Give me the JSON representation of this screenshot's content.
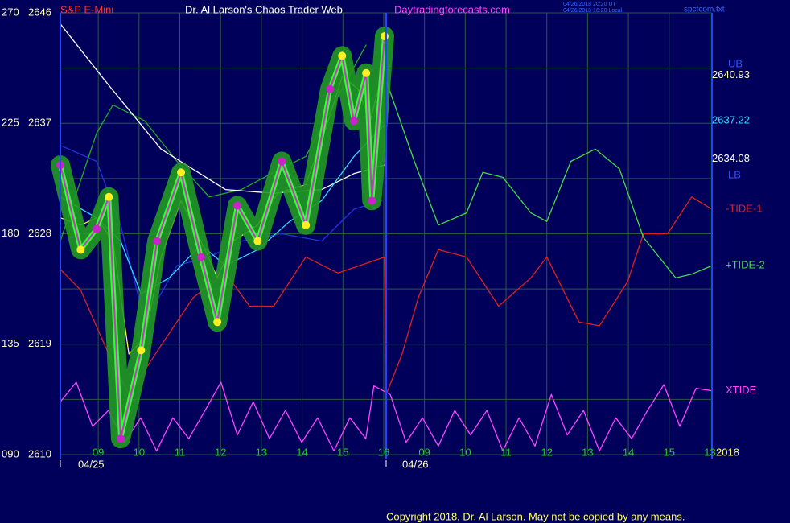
{
  "chart_data": {
    "type": "line",
    "header": {
      "instrument": "S&P E-Mini",
      "title": "Dr. Al Larson's Chaos Trader Web",
      "site": "Daytradingforecasts.com",
      "stamp_ut": "04/26/2018 20:20 UT",
      "stamp_local": "04/26/2018 16:20 Local",
      "file": "spcfcom.txt"
    },
    "dates": [
      "04/25",
      "04/26"
    ],
    "year": "2018",
    "bound_labels": {
      "upper": "UB",
      "lower": "LB"
    },
    "levels": [
      {
        "value": 2640.93,
        "color": "#ffffc0"
      },
      {
        "value": 2637.22,
        "color": "#33ddff"
      },
      {
        "value": 2634.08,
        "color": "#ffffff"
      }
    ],
    "copyright": "Copyright 2018, Dr. Al Larson. May not be copied by any means.",
    "xlim": [
      8.07,
      24.05
    ],
    "xticks": [
      {
        "value": 9,
        "label": "09"
      },
      10,
      11,
      12,
      13,
      14,
      15,
      16,
      {
        "value": 17,
        "label": "09"
      },
      {
        "value": 18,
        "label": "10"
      },
      {
        "value": 19,
        "label": "11"
      },
      {
        "value": 20,
        "label": "12"
      },
      {
        "value": 21,
        "label": "13"
      },
      {
        "value": 22,
        "label": "14"
      },
      {
        "value": 23,
        "label": "15"
      },
      {
        "value": 24,
        "label": "13"
      }
    ],
    "ylim": [
      2610,
      2646
    ],
    "yticks": [
      2610,
      2619,
      2628,
      2637,
      2646
    ],
    "yminor": [
      2614.5,
      2623.5,
      2632.5,
      2641.5
    ],
    "y2lim": [
      90,
      270
    ],
    "y2ticks": [
      {
        "value": 90,
        "label": "090"
      },
      135,
      180,
      225,
      270
    ],
    "grid": true,
    "grid_color": "#285a40",
    "series": [
      {
        "name": "XTIDE",
        "color": "#ff44ff",
        "x": [
          8.07,
          8.46,
          8.86,
          9.25,
          9.65,
          10.04,
          10.43,
          10.83,
          11.22,
          11.62,
          12.01,
          12.41,
          12.8,
          13.2,
          13.59,
          13.99,
          14.38,
          14.78,
          15.17,
          15.56,
          15.76,
          16.16,
          16.55,
          16.95,
          17.34,
          17.74,
          18.13,
          18.53,
          18.92,
          19.32,
          19.71,
          20.11,
          20.5,
          20.9,
          21.29,
          21.69,
          22.08,
          22.47,
          22.87,
          23.26,
          23.66,
          24.05
        ],
        "values": [
          2614.3,
          2615.9,
          2612.3,
          2613.6,
          2611.0,
          2613.0,
          2610.3,
          2613.0,
          2611.3,
          2613.6,
          2615.9,
          2611.6,
          2614.3,
          2611.3,
          2613.6,
          2611.0,
          2613.0,
          2610.3,
          2613.0,
          2611.3,
          2615.6,
          2614.9,
          2611.0,
          2613.0,
          2610.7,
          2613.6,
          2611.6,
          2613.6,
          2610.3,
          2613.0,
          2610.7,
          2614.9,
          2611.6,
          2613.6,
          2610.3,
          2613.0,
          2611.3,
          2613.6,
          2615.7,
          2612.3,
          2615.4,
          2615.2
        ]
      },
      {
        "name": "-TIDE-1",
        "color": "#e02020",
        "x": [
          8.07,
          8.57,
          9.16,
          9.75,
          10.54,
          11.33,
          12.12,
          12.71,
          13.3,
          14.09,
          14.88,
          16.02,
          16.06,
          16.45,
          16.85,
          17.34,
          18.03,
          18.82,
          19.61,
          20.0,
          20.79,
          21.29,
          21.98,
          22.37,
          22.96,
          23.55,
          24.05
        ],
        "values": [
          2625.1,
          2623.4,
          2618.9,
          2614.9,
          2618.9,
          2622.8,
          2624.8,
          2622.1,
          2622.1,
          2626.1,
          2624.8,
          2626.1,
          2614.9,
          2618.2,
          2622.8,
          2626.7,
          2626.1,
          2622.1,
          2624.4,
          2626.1,
          2620.8,
          2620.5,
          2624.1,
          2628.0,
          2628.0,
          2631.0,
          2630.0
        ]
      },
      {
        "name": "+TIDE-2",
        "color": "#44dd44",
        "x": [
          16.06,
          16.75,
          17.34,
          18.03,
          18.43,
          18.92,
          19.61,
          20.0,
          20.59,
          21.19,
          21.78,
          22.37,
          23.16,
          23.55,
          24.05
        ],
        "values": [
          2640.5,
          2633.9,
          2628.7,
          2629.7,
          2633.0,
          2632.6,
          2629.7,
          2629.0,
          2633.9,
          2634.9,
          2633.3,
          2627.7,
          2624.4,
          2624.7,
          2625.4
        ]
      },
      {
        "color": "#22aa22",
        "x": [
          8.07,
          8.96,
          9.36,
          10.14,
          10.93,
          11.72,
          12.51,
          13.3,
          14.09,
          14.88,
          15.57
        ],
        "values": [
          2627.4,
          2636.2,
          2638.5,
          2637.2,
          2633.9,
          2631.0,
          2631.6,
          2633.0,
          2634.3,
          2639.2,
          2643.4
        ]
      },
      {
        "color": "#2233dd",
        "x": [
          8.07,
          8.96,
          9.55,
          10.14,
          10.93,
          11.72,
          12.51,
          13.5,
          14.48,
          15.27,
          15.96
        ],
        "values": [
          2635.2,
          2633.9,
          2628.7,
          2620.8,
          2625.4,
          2626.1,
          2627.4,
          2628.0,
          2627.4,
          2630.0,
          2630.7
        ]
      },
      {
        "color": "#ffffff",
        "x": [
          8.07,
          9.16,
          10.54,
          12.12,
          13.3,
          14.48,
          15.27,
          16.02
        ],
        "values": [
          2645.1,
          2640.5,
          2634.9,
          2631.6,
          2631.3,
          2631.6,
          2632.9,
          2633.6
        ]
      },
      {
        "color": "#33ddff",
        "x": [
          8.07,
          8.96,
          9.55,
          10.05,
          10.74,
          11.52,
          12.12,
          12.91,
          13.69,
          14.48,
          15.27,
          16.02
        ],
        "values": [
          2631.0,
          2629.3,
          2627.4,
          2623.1,
          2624.4,
          2627.1,
          2625.4,
          2626.7,
          2629.0,
          2630.7,
          2634.3,
          2636.9
        ]
      },
      {
        "color": "#ffff33",
        "x": [
          8.07,
          8.57,
          8.96,
          9.36,
          9.75,
          10.14,
          10.54,
          11.03,
          11.52,
          11.92,
          12.31,
          12.91,
          13.4,
          14.09,
          14.58,
          14.98,
          15.37,
          15.67,
          16.02
        ],
        "values": [
          2629.3,
          2628.7,
          2629.3,
          2627.4,
          2618.2,
          2619.5,
          2626.1,
          2630.7,
          2627.4,
          2624.4,
          2627.4,
          2628.7,
          2631.3,
          2632.0,
          2636.6,
          2640.8,
          2639.8,
          2637.2,
          2641.8
        ]
      },
      {
        "color": "#cc33cc",
        "halo": "#229922",
        "x": [
          8.07,
          8.57,
          8.96,
          9.26,
          9.55,
          10.05,
          10.44,
          11.03,
          11.52,
          11.92,
          12.41,
          12.91,
          13.5,
          14.09,
          14.68,
          14.98,
          15.27,
          15.57,
          15.71,
          16.02
        ],
        "values": [
          2633.6,
          2626.7,
          2628.4,
          2631.0,
          2611.3,
          2618.5,
          2627.4,
          2633.0,
          2626.1,
          2620.8,
          2630.3,
          2627.4,
          2633.9,
          2628.7,
          2639.8,
          2642.5,
          2637.2,
          2641.1,
          2630.7,
          2644.1
        ]
      }
    ]
  }
}
